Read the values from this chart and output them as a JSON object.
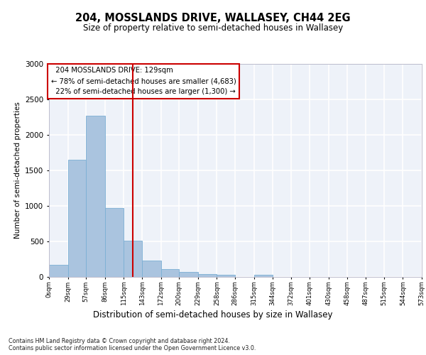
{
  "title_line1": "204, MOSSLANDS DRIVE, WALLASEY, CH44 2EG",
  "title_line2": "Size of property relative to semi-detached houses in Wallasey",
  "xlabel": "Distribution of semi-detached houses by size in Wallasey",
  "ylabel": "Number of semi-detached properties",
  "footnote": "Contains HM Land Registry data © Crown copyright and database right 2024.\nContains public sector information licensed under the Open Government Licence v3.0.",
  "property_size": 129,
  "property_label": "204 MOSSLANDS DRIVE: 129sqm",
  "pct_smaller": "78% of semi-detached houses are smaller (4,683)",
  "pct_larger": "22% of semi-detached houses are larger (1,300)",
  "bin_edges": [
    0,
    29,
    57,
    86,
    115,
    143,
    172,
    200,
    229,
    258,
    286,
    315,
    344,
    372,
    401,
    430,
    458,
    487,
    515,
    544,
    573
  ],
  "counts": [
    170,
    1650,
    2270,
    975,
    510,
    230,
    115,
    75,
    40,
    30,
    0,
    30,
    0,
    0,
    0,
    0,
    0,
    0,
    0,
    0
  ],
  "bar_color": "#aac4df",
  "bar_edge_color": "#7bafd4",
  "vline_color": "#cc0000",
  "box_edge_color": "#cc0000",
  "box_face_color": "white",
  "background_color": "#eef2f9",
  "grid_color": "white",
  "ylim": [
    0,
    3000
  ],
  "yticks": [
    0,
    500,
    1000,
    1500,
    2000,
    2500,
    3000
  ]
}
